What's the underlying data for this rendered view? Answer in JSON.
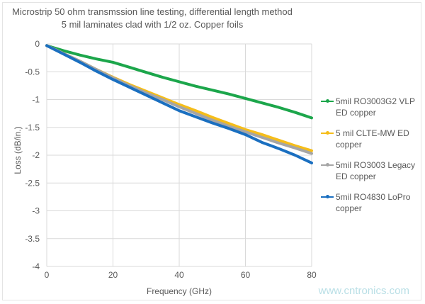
{
  "chart_data": {
    "type": "line",
    "title": "Microstrip 50 ohm transmssion line testing, differential length method",
    "subtitle": "5 mil laminates clad with 1/2 oz. Copper foils",
    "xlabel": "Frequency (GHz)",
    "ylabel": "Loss (dB/in.)",
    "xlim": [
      0,
      80
    ],
    "ylim": [
      -4,
      0
    ],
    "xticks": [
      0,
      20,
      40,
      60,
      80
    ],
    "yticks": [
      0,
      -0.5,
      -1,
      -1.5,
      -2,
      -2.5,
      -3,
      -3.5,
      -4
    ],
    "ytick_labels": [
      "0",
      "-0.5",
      "-1",
      "-1.5",
      "-2",
      "-2.5",
      "-3",
      "-3.5",
      "-4"
    ],
    "grid": true,
    "legend_position": "right",
    "x": [
      0,
      5,
      10,
      15,
      20,
      25,
      30,
      35,
      40,
      45,
      50,
      55,
      60,
      65,
      70,
      75,
      80
    ],
    "series": [
      {
        "name": "5mil RO3003G2 VLP ED copper",
        "color": "#1ca64b",
        "values": [
          -0.03,
          -0.12,
          -0.2,
          -0.27,
          -0.33,
          -0.42,
          -0.51,
          -0.6,
          -0.68,
          -0.76,
          -0.83,
          -0.9,
          -0.98,
          -1.06,
          -1.14,
          -1.23,
          -1.33
        ]
      },
      {
        "name": "5 mil CLTE-MW ED copper",
        "color": "#f5bd1a",
        "values": [
          -0.03,
          -0.17,
          -0.31,
          -0.46,
          -0.6,
          -0.73,
          -0.85,
          -0.97,
          -1.09,
          -1.2,
          -1.32,
          -1.43,
          -1.54,
          -1.63,
          -1.73,
          -1.83,
          -1.92
        ]
      },
      {
        "name": "5mil RO3003 Legacy ED copper",
        "color": "#a5a5a5",
        "values": [
          -0.03,
          -0.17,
          -0.31,
          -0.46,
          -0.61,
          -0.75,
          -0.88,
          -1.0,
          -1.13,
          -1.25,
          -1.37,
          -1.48,
          -1.58,
          -1.68,
          -1.78,
          -1.87,
          -1.97
        ]
      },
      {
        "name": "5mil RO4830 LoPro copper",
        "color": "#1a6fc0",
        "values": [
          -0.03,
          -0.18,
          -0.33,
          -0.49,
          -0.64,
          -0.78,
          -0.92,
          -1.06,
          -1.2,
          -1.31,
          -1.42,
          -1.52,
          -1.63,
          -1.77,
          -1.88,
          -2.0,
          -2.14
        ]
      }
    ]
  },
  "watermark": "www.cntronics.com"
}
